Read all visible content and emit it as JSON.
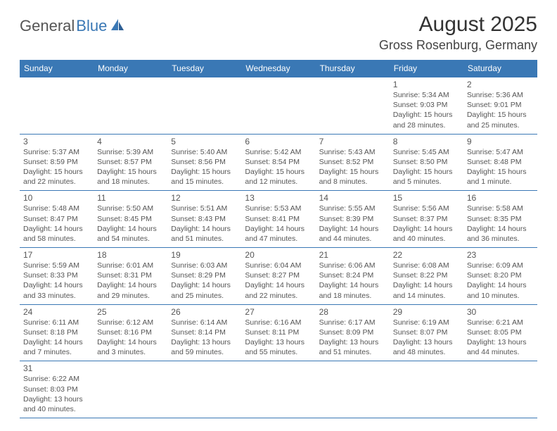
{
  "logo": {
    "text1": "General",
    "text2": "Blue"
  },
  "title": "August 2025",
  "location": "Gross Rosenburg, Germany",
  "colors": {
    "header_bg": "#3a78b5",
    "header_fg": "#ffffff",
    "border": "#3a78b5",
    "text": "#555555",
    "logo_blue": "#3a78b5",
    "logo_gray": "#555555"
  },
  "day_headers": [
    "Sunday",
    "Monday",
    "Tuesday",
    "Wednesday",
    "Thursday",
    "Friday",
    "Saturday"
  ],
  "weeks": [
    [
      null,
      null,
      null,
      null,
      null,
      {
        "n": "1",
        "sr": "Sunrise: 5:34 AM",
        "ss": "Sunset: 9:03 PM",
        "dl": "Daylight: 15 hours and 28 minutes."
      },
      {
        "n": "2",
        "sr": "Sunrise: 5:36 AM",
        "ss": "Sunset: 9:01 PM",
        "dl": "Daylight: 15 hours and 25 minutes."
      }
    ],
    [
      {
        "n": "3",
        "sr": "Sunrise: 5:37 AM",
        "ss": "Sunset: 8:59 PM",
        "dl": "Daylight: 15 hours and 22 minutes."
      },
      {
        "n": "4",
        "sr": "Sunrise: 5:39 AM",
        "ss": "Sunset: 8:57 PM",
        "dl": "Daylight: 15 hours and 18 minutes."
      },
      {
        "n": "5",
        "sr": "Sunrise: 5:40 AM",
        "ss": "Sunset: 8:56 PM",
        "dl": "Daylight: 15 hours and 15 minutes."
      },
      {
        "n": "6",
        "sr": "Sunrise: 5:42 AM",
        "ss": "Sunset: 8:54 PM",
        "dl": "Daylight: 15 hours and 12 minutes."
      },
      {
        "n": "7",
        "sr": "Sunrise: 5:43 AM",
        "ss": "Sunset: 8:52 PM",
        "dl": "Daylight: 15 hours and 8 minutes."
      },
      {
        "n": "8",
        "sr": "Sunrise: 5:45 AM",
        "ss": "Sunset: 8:50 PM",
        "dl": "Daylight: 15 hours and 5 minutes."
      },
      {
        "n": "9",
        "sr": "Sunrise: 5:47 AM",
        "ss": "Sunset: 8:48 PM",
        "dl": "Daylight: 15 hours and 1 minute."
      }
    ],
    [
      {
        "n": "10",
        "sr": "Sunrise: 5:48 AM",
        "ss": "Sunset: 8:47 PM",
        "dl": "Daylight: 14 hours and 58 minutes."
      },
      {
        "n": "11",
        "sr": "Sunrise: 5:50 AM",
        "ss": "Sunset: 8:45 PM",
        "dl": "Daylight: 14 hours and 54 minutes."
      },
      {
        "n": "12",
        "sr": "Sunrise: 5:51 AM",
        "ss": "Sunset: 8:43 PM",
        "dl": "Daylight: 14 hours and 51 minutes."
      },
      {
        "n": "13",
        "sr": "Sunrise: 5:53 AM",
        "ss": "Sunset: 8:41 PM",
        "dl": "Daylight: 14 hours and 47 minutes."
      },
      {
        "n": "14",
        "sr": "Sunrise: 5:55 AM",
        "ss": "Sunset: 8:39 PM",
        "dl": "Daylight: 14 hours and 44 minutes."
      },
      {
        "n": "15",
        "sr": "Sunrise: 5:56 AM",
        "ss": "Sunset: 8:37 PM",
        "dl": "Daylight: 14 hours and 40 minutes."
      },
      {
        "n": "16",
        "sr": "Sunrise: 5:58 AM",
        "ss": "Sunset: 8:35 PM",
        "dl": "Daylight: 14 hours and 36 minutes."
      }
    ],
    [
      {
        "n": "17",
        "sr": "Sunrise: 5:59 AM",
        "ss": "Sunset: 8:33 PM",
        "dl": "Daylight: 14 hours and 33 minutes."
      },
      {
        "n": "18",
        "sr": "Sunrise: 6:01 AM",
        "ss": "Sunset: 8:31 PM",
        "dl": "Daylight: 14 hours and 29 minutes."
      },
      {
        "n": "19",
        "sr": "Sunrise: 6:03 AM",
        "ss": "Sunset: 8:29 PM",
        "dl": "Daylight: 14 hours and 25 minutes."
      },
      {
        "n": "20",
        "sr": "Sunrise: 6:04 AM",
        "ss": "Sunset: 8:27 PM",
        "dl": "Daylight: 14 hours and 22 minutes."
      },
      {
        "n": "21",
        "sr": "Sunrise: 6:06 AM",
        "ss": "Sunset: 8:24 PM",
        "dl": "Daylight: 14 hours and 18 minutes."
      },
      {
        "n": "22",
        "sr": "Sunrise: 6:08 AM",
        "ss": "Sunset: 8:22 PM",
        "dl": "Daylight: 14 hours and 14 minutes."
      },
      {
        "n": "23",
        "sr": "Sunrise: 6:09 AM",
        "ss": "Sunset: 8:20 PM",
        "dl": "Daylight: 14 hours and 10 minutes."
      }
    ],
    [
      {
        "n": "24",
        "sr": "Sunrise: 6:11 AM",
        "ss": "Sunset: 8:18 PM",
        "dl": "Daylight: 14 hours and 7 minutes."
      },
      {
        "n": "25",
        "sr": "Sunrise: 6:12 AM",
        "ss": "Sunset: 8:16 PM",
        "dl": "Daylight: 14 hours and 3 minutes."
      },
      {
        "n": "26",
        "sr": "Sunrise: 6:14 AM",
        "ss": "Sunset: 8:14 PM",
        "dl": "Daylight: 13 hours and 59 minutes."
      },
      {
        "n": "27",
        "sr": "Sunrise: 6:16 AM",
        "ss": "Sunset: 8:11 PM",
        "dl": "Daylight: 13 hours and 55 minutes."
      },
      {
        "n": "28",
        "sr": "Sunrise: 6:17 AM",
        "ss": "Sunset: 8:09 PM",
        "dl": "Daylight: 13 hours and 51 minutes."
      },
      {
        "n": "29",
        "sr": "Sunrise: 6:19 AM",
        "ss": "Sunset: 8:07 PM",
        "dl": "Daylight: 13 hours and 48 minutes."
      },
      {
        "n": "30",
        "sr": "Sunrise: 6:21 AM",
        "ss": "Sunset: 8:05 PM",
        "dl": "Daylight: 13 hours and 44 minutes."
      }
    ],
    [
      {
        "n": "31",
        "sr": "Sunrise: 6:22 AM",
        "ss": "Sunset: 8:03 PM",
        "dl": "Daylight: 13 hours and 40 minutes."
      },
      null,
      null,
      null,
      null,
      null,
      null
    ]
  ]
}
